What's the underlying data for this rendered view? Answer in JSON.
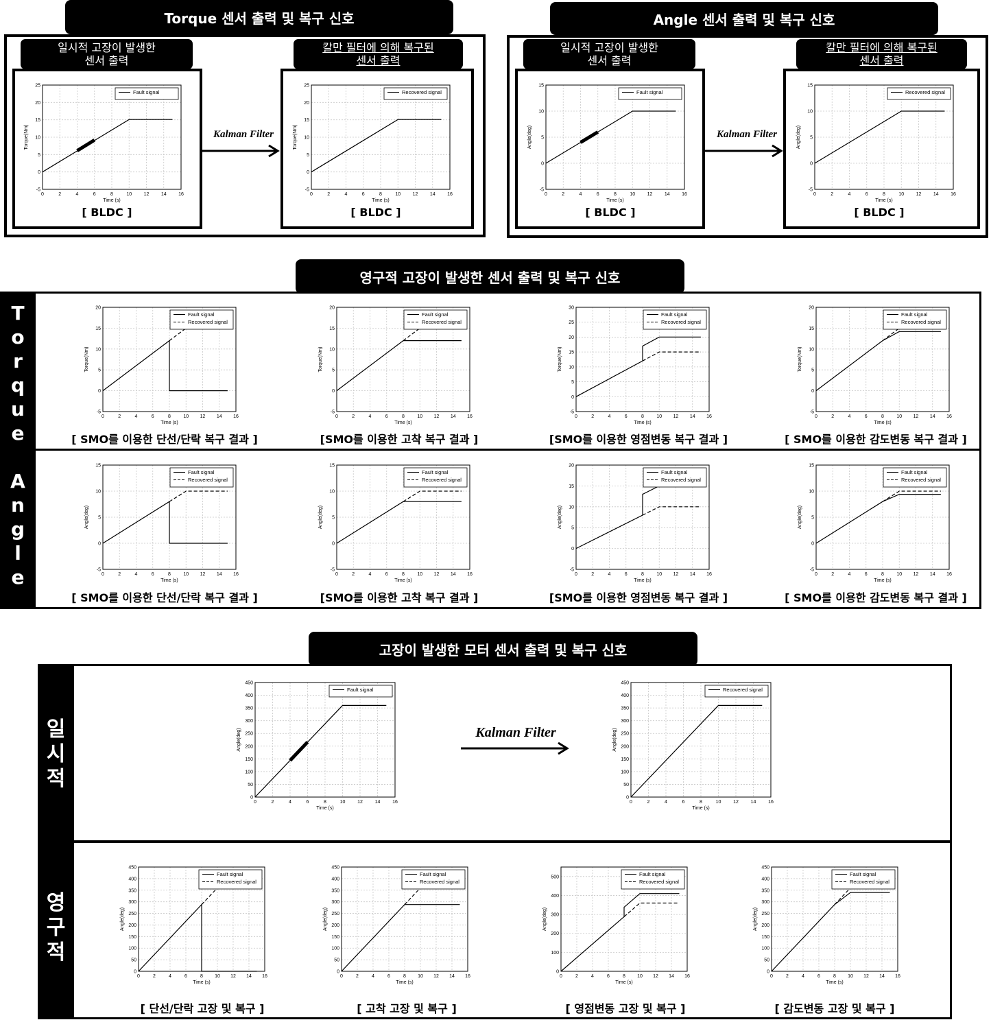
{
  "top": {
    "torque_tab": "Torque 센서 출력 및 복구 신호",
    "angle_tab": "Angle 센서 출력 및 복구 신호",
    "fault_label_1": "일시적 고장이 발생한",
    "fault_label_2": "센서 출력",
    "kalman_label_1": "칼만 필터에 의해 복구된",
    "kalman_label_2": "센서 출력",
    "bldc": "[ BLDC ]",
    "kalman": "Kalman Filter"
  },
  "middle": {
    "tab": "영구적 고장이 발생한 센서 출력 및 복구 신호",
    "torque_side": [
      "T",
      "o",
      "r",
      "q",
      "u",
      "e"
    ],
    "angle_side": [
      "A",
      "n",
      "g",
      "l",
      "e"
    ],
    "captions": [
      "[ SMO를 이용한 단선/단락 복구 결과 ]",
      "[SMO를 이용한 고착 복구 결과 ]",
      "[SMO를 이용한 영점변동 복구 결과 ]",
      "[ SMO를 이용한 감도변동 복구 결과 ]"
    ]
  },
  "bottom": {
    "tab": "고장이 발생한 모터 센서 출력 및 복구 신호",
    "temp_side": [
      "일",
      "시",
      "적"
    ],
    "perm_side": [
      "영",
      "구",
      "적"
    ],
    "kalman": "Kalman Filter",
    "captions": [
      "[ 단선/단락 고장 및 복구 ]",
      "[ 고착 고장 및 복구 ]",
      "[ 영점변동 고장 및 복구 ]",
      "[ 감도변동 고장 및 복구 ]"
    ]
  },
  "colors": {
    "ink": "#000000",
    "grid": "#c8c8c8"
  },
  "chart_data": [
    {
      "id": "t_fault",
      "type": "line",
      "xlabel": "Time (s)",
      "ylabel": "Torque(Nm)",
      "xlim": [
        0,
        16
      ],
      "ylim": [
        -5,
        25
      ],
      "xticks": [
        0,
        2,
        4,
        6,
        8,
        10,
        12,
        14,
        16
      ],
      "yticks": [
        -5,
        0,
        5,
        10,
        15,
        20,
        25
      ],
      "legend": "top-right",
      "series": [
        {
          "name": "Fault signal",
          "style": "solid",
          "x": [
            0,
            10,
            15
          ],
          "y": [
            0,
            15.1,
            15.1
          ]
        },
        {
          "name": "",
          "style": "thick",
          "x": [
            4,
            6
          ],
          "y": [
            6.1,
            9.2
          ]
        }
      ]
    },
    {
      "id": "t_rec",
      "type": "line",
      "xlabel": "Time (s)",
      "ylabel": "Torque(Nm)",
      "xlim": [
        0,
        16
      ],
      "ylim": [
        -5,
        25
      ],
      "xticks": [
        0,
        2,
        4,
        6,
        8,
        10,
        12,
        14,
        16
      ],
      "yticks": [
        -5,
        0,
        5,
        10,
        15,
        20,
        25
      ],
      "legend": "top-right",
      "series": [
        {
          "name": "Recovered signal",
          "style": "solid",
          "x": [
            0,
            10,
            15
          ],
          "y": [
            0,
            15.1,
            15.1
          ]
        }
      ]
    },
    {
      "id": "a_fault",
      "type": "line",
      "xlabel": "Time (s)",
      "ylabel": "Angle(deg)",
      "xlim": [
        0,
        16
      ],
      "ylim": [
        -5,
        15
      ],
      "xticks": [
        0,
        2,
        4,
        6,
        8,
        10,
        12,
        14,
        16
      ],
      "yticks": [
        -5,
        0,
        5,
        10,
        15
      ],
      "legend": "top-right",
      "series": [
        {
          "name": "Fault signal",
          "style": "solid",
          "x": [
            0,
            10,
            15
          ],
          "y": [
            0,
            10,
            10
          ]
        },
        {
          "name": "",
          "style": "thick",
          "x": [
            4,
            6
          ],
          "y": [
            4,
            6
          ]
        }
      ]
    },
    {
      "id": "a_rec",
      "type": "line",
      "xlabel": "Time (s)",
      "ylabel": "Angle(deg)",
      "xlim": [
        0,
        16
      ],
      "ylim": [
        -5,
        15
      ],
      "xticks": [
        0,
        2,
        4,
        6,
        8,
        10,
        12,
        14,
        16
      ],
      "yticks": [
        -5,
        0,
        5,
        10,
        15
      ],
      "legend": "top-right",
      "series": [
        {
          "name": "Recovered signal",
          "style": "solid",
          "x": [
            0,
            10,
            15
          ],
          "y": [
            0,
            10,
            10
          ]
        }
      ]
    },
    {
      "id": "tp1",
      "type": "line",
      "xlabel": "Time (s)",
      "ylabel": "Torque(Nm)",
      "xlim": [
        0,
        16
      ],
      "ylim": [
        -5,
        20
      ],
      "xticks": [
        0,
        2,
        4,
        6,
        8,
        10,
        12,
        14,
        16
      ],
      "yticks": [
        -5,
        0,
        5,
        10,
        15,
        20
      ],
      "legend": "top-right",
      "series": [
        {
          "name": "Fault signal",
          "style": "solid",
          "x": [
            0,
            8,
            8,
            15
          ],
          "y": [
            0,
            12,
            0,
            0
          ]
        },
        {
          "name": "Recovered signal",
          "style": "dashed",
          "x": [
            8,
            10,
            15
          ],
          "y": [
            12,
            15,
            15
          ]
        }
      ]
    },
    {
      "id": "tp2",
      "type": "line",
      "xlabel": "Time (s)",
      "ylabel": "Torque(Nm)",
      "xlim": [
        0,
        16
      ],
      "ylim": [
        -5,
        20
      ],
      "xticks": [
        0,
        2,
        4,
        6,
        8,
        10,
        12,
        14,
        16
      ],
      "yticks": [
        -5,
        0,
        5,
        10,
        15,
        20
      ],
      "legend": "top-right",
      "series": [
        {
          "name": "Fault signal",
          "style": "solid",
          "x": [
            0,
            8,
            15
          ],
          "y": [
            0,
            12,
            12
          ]
        },
        {
          "name": "Recovered signal",
          "style": "dashed",
          "x": [
            8,
            10,
            15
          ],
          "y": [
            12,
            15,
            15
          ]
        }
      ]
    },
    {
      "id": "tp3",
      "type": "line",
      "xlabel": "Time (s)",
      "ylabel": "Torque(Nm)",
      "xlim": [
        0,
        16
      ],
      "ylim": [
        -5,
        30
      ],
      "xticks": [
        0,
        2,
        4,
        6,
        8,
        10,
        12,
        14,
        16
      ],
      "yticks": [
        -5,
        0,
        5,
        10,
        15,
        20,
        25,
        30
      ],
      "legend": "top-right",
      "series": [
        {
          "name": "Fault signal",
          "style": "solid",
          "x": [
            0,
            8,
            8,
            10,
            15
          ],
          "y": [
            0,
            12,
            17,
            20,
            20
          ]
        },
        {
          "name": "Recovered signal",
          "style": "dashed",
          "x": [
            8,
            10,
            15
          ],
          "y": [
            12,
            15,
            15
          ]
        }
      ]
    },
    {
      "id": "tp4",
      "type": "line",
      "xlabel": "Time (s)",
      "ylabel": "Torque(Nm)",
      "xlim": [
        0,
        16
      ],
      "ylim": [
        -5,
        20
      ],
      "xticks": [
        0,
        2,
        4,
        6,
        8,
        10,
        12,
        14,
        16
      ],
      "yticks": [
        -5,
        0,
        5,
        10,
        15,
        20
      ],
      "legend": "top-right",
      "series": [
        {
          "name": "Fault signal",
          "style": "solid",
          "x": [
            0,
            8,
            10,
            15
          ],
          "y": [
            0,
            12,
            14.2,
            14.2
          ]
        },
        {
          "name": "Recovered signal",
          "style": "dashed",
          "x": [
            8,
            10,
            15
          ],
          "y": [
            12,
            15,
            15
          ]
        }
      ]
    },
    {
      "id": "ap1",
      "type": "line",
      "xlabel": "Time (s)",
      "ylabel": "Angle(deg)",
      "xlim": [
        0,
        16
      ],
      "ylim": [
        -5,
        15
      ],
      "xticks": [
        0,
        2,
        4,
        6,
        8,
        10,
        12,
        14,
        16
      ],
      "yticks": [
        -5,
        0,
        5,
        10,
        15
      ],
      "legend": "top-right",
      "series": [
        {
          "name": "Fault signal",
          "style": "solid",
          "x": [
            0,
            8,
            8,
            15
          ],
          "y": [
            0,
            8,
            0,
            0
          ]
        },
        {
          "name": "Recovered signal",
          "style": "dashed",
          "x": [
            8,
            10,
            15
          ],
          "y": [
            8,
            10,
            10
          ]
        }
      ]
    },
    {
      "id": "ap2",
      "type": "line",
      "xlabel": "Time (s)",
      "ylabel": "Angle(deg)",
      "xlim": [
        0,
        16
      ],
      "ylim": [
        -5,
        15
      ],
      "xticks": [
        0,
        2,
        4,
        6,
        8,
        10,
        12,
        14,
        16
      ],
      "yticks": [
        -5,
        0,
        5,
        10,
        15
      ],
      "legend": "top-right",
      "series": [
        {
          "name": "Fault signal",
          "style": "solid",
          "x": [
            0,
            8,
            15
          ],
          "y": [
            0,
            8,
            8
          ]
        },
        {
          "name": "Recovered signal",
          "style": "dashed",
          "x": [
            8,
            10,
            15
          ],
          "y": [
            8,
            10,
            10
          ]
        }
      ]
    },
    {
      "id": "ap3",
      "type": "line",
      "xlabel": "Time (s)",
      "ylabel": "Angle(deg)",
      "xlim": [
        0,
        16
      ],
      "ylim": [
        -5,
        20
      ],
      "xticks": [
        0,
        2,
        4,
        6,
        8,
        10,
        12,
        14,
        16
      ],
      "yticks": [
        -5,
        0,
        5,
        10,
        15,
        20
      ],
      "legend": "top-right",
      "series": [
        {
          "name": "Fault signal",
          "style": "solid",
          "x": [
            0,
            8,
            8,
            10,
            15
          ],
          "y": [
            0,
            8,
            13,
            15,
            15
          ]
        },
        {
          "name": "Recovered signal",
          "style": "dashed",
          "x": [
            8,
            10,
            15
          ],
          "y": [
            8,
            10,
            10
          ]
        }
      ]
    },
    {
      "id": "ap4",
      "type": "line",
      "xlabel": "Time (s)",
      "ylabel": "Angle(deg)",
      "xlim": [
        0,
        16
      ],
      "ylim": [
        -5,
        15
      ],
      "xticks": [
        0,
        2,
        4,
        6,
        8,
        10,
        12,
        14,
        16
      ],
      "yticks": [
        -5,
        0,
        5,
        10,
        15
      ],
      "legend": "top-right",
      "series": [
        {
          "name": "Fault signal",
          "style": "solid",
          "x": [
            0,
            8,
            10,
            15
          ],
          "y": [
            0,
            8,
            9.4,
            9.4
          ]
        },
        {
          "name": "Recovered signal",
          "style": "dashed",
          "x": [
            8,
            10,
            15
          ],
          "y": [
            8,
            10,
            10
          ]
        }
      ]
    },
    {
      "id": "m_fault",
      "type": "line",
      "xlabel": "Time (s)",
      "ylabel": "Angle(deg)",
      "xlim": [
        0,
        16
      ],
      "ylim": [
        0,
        450
      ],
      "xticks": [
        0,
        2,
        4,
        6,
        8,
        10,
        12,
        14,
        16
      ],
      "yticks": [
        0,
        50,
        100,
        150,
        200,
        250,
        300,
        350,
        400,
        450
      ],
      "legend": "top-right",
      "series": [
        {
          "name": "Fault signal",
          "style": "solid",
          "x": [
            0,
            10,
            15
          ],
          "y": [
            0,
            360,
            360
          ]
        },
        {
          "name": "",
          "style": "thick",
          "x": [
            4,
            6
          ],
          "y": [
            144,
            216
          ]
        }
      ]
    },
    {
      "id": "m_rec",
      "type": "line",
      "xlabel": "Time (s)",
      "ylabel": "Angle(deg)",
      "xlim": [
        0,
        16
      ],
      "ylim": [
        0,
        450
      ],
      "xticks": [
        0,
        2,
        4,
        6,
        8,
        10,
        12,
        14,
        16
      ],
      "yticks": [
        0,
        50,
        100,
        150,
        200,
        250,
        300,
        350,
        400,
        450
      ],
      "legend": "top-right",
      "series": [
        {
          "name": "Recovered signal",
          "style": "solid",
          "x": [
            0,
            10,
            15
          ],
          "y": [
            0,
            360,
            360
          ]
        }
      ]
    },
    {
      "id": "mp1",
      "type": "line",
      "xlabel": "Time (s)",
      "ylabel": "Angle(deg)",
      "xlim": [
        0,
        16
      ],
      "ylim": [
        0,
        450
      ],
      "xticks": [
        0,
        2,
        4,
        6,
        8,
        10,
        12,
        14,
        16
      ],
      "yticks": [
        0,
        50,
        100,
        150,
        200,
        250,
        300,
        350,
        400,
        450
      ],
      "legend": "top-right",
      "series": [
        {
          "name": "Fault signal",
          "style": "solid",
          "x": [
            0,
            8,
            8,
            15
          ],
          "y": [
            0,
            288,
            0,
            0
          ]
        },
        {
          "name": "Recovered signal",
          "style": "dashed",
          "x": [
            8,
            10,
            15
          ],
          "y": [
            288,
            360,
            360
          ]
        }
      ]
    },
    {
      "id": "mp2",
      "type": "line",
      "xlabel": "Time (s)",
      "ylabel": "Angle(deg)",
      "xlim": [
        0,
        16
      ],
      "ylim": [
        0,
        450
      ],
      "xticks": [
        0,
        2,
        4,
        6,
        8,
        10,
        12,
        14,
        16
      ],
      "yticks": [
        0,
        50,
        100,
        150,
        200,
        250,
        300,
        350,
        400,
        450
      ],
      "legend": "top-right",
      "series": [
        {
          "name": "Fault signal",
          "style": "solid",
          "x": [
            0,
            8,
            15
          ],
          "y": [
            0,
            288,
            288
          ]
        },
        {
          "name": "Recovered signal",
          "style": "dashed",
          "x": [
            8,
            10,
            15
          ],
          "y": [
            288,
            360,
            360
          ]
        }
      ]
    },
    {
      "id": "mp3",
      "type": "line",
      "xlabel": "Time (s)",
      "ylabel": "Angle(deg)",
      "xlim": [
        0,
        16
      ],
      "ylim": [
        0,
        550
      ],
      "xticks": [
        0,
        2,
        4,
        6,
        8,
        10,
        12,
        14,
        16
      ],
      "yticks": [
        0,
        100,
        200,
        300,
        400,
        500
      ],
      "legend": "top-right",
      "series": [
        {
          "name": "Fault signal",
          "style": "solid",
          "x": [
            0,
            8,
            8,
            10,
            15
          ],
          "y": [
            0,
            288,
            338,
            410,
            410
          ]
        },
        {
          "name": "Recovered signal",
          "style": "dashed",
          "x": [
            8,
            10,
            15
          ],
          "y": [
            288,
            360,
            360
          ]
        }
      ]
    },
    {
      "id": "mp4",
      "type": "line",
      "xlabel": "Time (s)",
      "ylabel": "Angle(deg)",
      "xlim": [
        0,
        16
      ],
      "ylim": [
        0,
        450
      ],
      "xticks": [
        0,
        2,
        4,
        6,
        8,
        10,
        12,
        14,
        16
      ],
      "yticks": [
        0,
        50,
        100,
        150,
        200,
        250,
        300,
        350,
        400,
        450
      ],
      "legend": "top-right",
      "series": [
        {
          "name": "Fault signal",
          "style": "solid",
          "x": [
            0,
            8,
            10,
            15
          ],
          "y": [
            0,
            288,
            340,
            340
          ]
        },
        {
          "name": "Recovered signal",
          "style": "dashed",
          "x": [
            8,
            10,
            15
          ],
          "y": [
            288,
            360,
            360
          ]
        }
      ]
    }
  ]
}
